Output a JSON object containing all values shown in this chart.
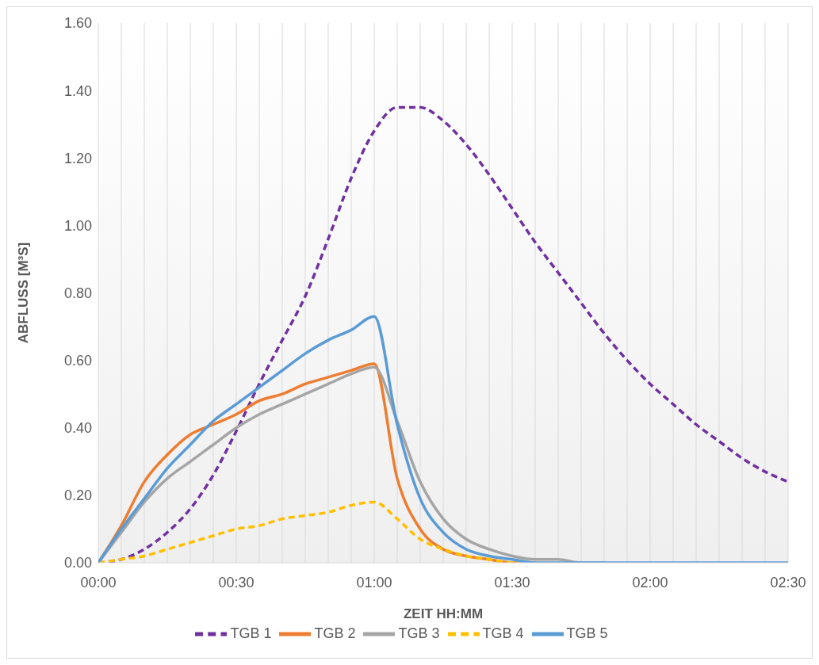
{
  "chart_data": {
    "type": "line",
    "xlabel": "ZEIT HH:MM",
    "ylabel": "ABFLUSS [M³S]",
    "x": [
      0,
      5,
      10,
      15,
      20,
      25,
      30,
      35,
      40,
      45,
      50,
      55,
      60,
      65,
      70,
      75,
      80,
      85,
      90,
      95,
      100,
      105,
      110,
      115,
      120,
      125,
      130,
      135,
      140,
      145,
      150
    ],
    "xlim": [
      0,
      150
    ],
    "xticks": [
      {
        "value": 0,
        "label": "00:00"
      },
      {
        "value": 5,
        "label": null
      },
      {
        "value": 10,
        "label": null
      },
      {
        "value": 15,
        "label": null
      },
      {
        "value": 20,
        "label": null
      },
      {
        "value": 25,
        "label": null
      },
      {
        "value": 30,
        "label": "00:30"
      },
      {
        "value": 35,
        "label": null
      },
      {
        "value": 40,
        "label": null
      },
      {
        "value": 45,
        "label": null
      },
      {
        "value": 50,
        "label": null
      },
      {
        "value": 55,
        "label": null
      },
      {
        "value": 60,
        "label": "01:00"
      },
      {
        "value": 65,
        "label": null
      },
      {
        "value": 70,
        "label": null
      },
      {
        "value": 75,
        "label": null
      },
      {
        "value": 80,
        "label": null
      },
      {
        "value": 85,
        "label": null
      },
      {
        "value": 90,
        "label": "01:30"
      },
      {
        "value": 95,
        "label": null
      },
      {
        "value": 100,
        "label": null
      },
      {
        "value": 105,
        "label": null
      },
      {
        "value": 110,
        "label": null
      },
      {
        "value": 115,
        "label": null
      },
      {
        "value": 120,
        "label": "02:00"
      },
      {
        "value": 125,
        "label": null
      },
      {
        "value": 130,
        "label": null
      },
      {
        "value": 135,
        "label": null
      },
      {
        "value": 140,
        "label": null
      },
      {
        "value": 145,
        "label": null
      },
      {
        "value": 150,
        "label": "02:30"
      }
    ],
    "ylim": [
      0,
      1.6
    ],
    "yticks": [
      {
        "value": 0,
        "label": "0.00"
      },
      {
        "value": 0.2,
        "label": "0.20"
      },
      {
        "value": 0.4,
        "label": "0.40"
      },
      {
        "value": 0.6,
        "label": "0.60"
      },
      {
        "value": 0.8,
        "label": "0.80"
      },
      {
        "value": 1,
        "label": "1.00"
      },
      {
        "value": 1.2,
        "label": "1.20"
      },
      {
        "value": 1.4,
        "label": "1.40"
      },
      {
        "value": 1.6,
        "label": "1.60"
      }
    ],
    "grid": "x",
    "legend": "bottom",
    "marker": "none",
    "series": [
      {
        "name": "TGB 1",
        "color": "#7030a0",
        "line_style": "dashed",
        "values": [
          0,
          0.01,
          0.04,
          0.09,
          0.16,
          0.26,
          0.39,
          0.53,
          0.66,
          0.79,
          0.96,
          1.14,
          1.28,
          1.35,
          1.35,
          1.31,
          1.24,
          1.15,
          1.05,
          0.95,
          0.86,
          0.77,
          0.68,
          0.6,
          0.53,
          0.47,
          0.41,
          0.36,
          0.31,
          0.27,
          0.24
        ]
      },
      {
        "name": "TGB 2",
        "color": "#ed7d31",
        "line_style": "solid",
        "values": [
          0,
          0.11,
          0.24,
          0.32,
          0.38,
          0.41,
          0.44,
          0.48,
          0.5,
          0.53,
          0.55,
          0.57,
          0.59,
          0.25,
          0.1,
          0.04,
          0.02,
          0.01,
          0,
          0,
          null,
          null,
          null,
          null,
          null,
          null,
          null,
          null,
          null,
          null,
          null
        ]
      },
      {
        "name": "TGB 3",
        "color": "#a5a5a5",
        "line_style": "solid",
        "values": [
          0,
          0.09,
          0.18,
          0.25,
          0.3,
          0.35,
          0.4,
          0.44,
          0.47,
          0.5,
          0.53,
          0.56,
          0.58,
          0.42,
          0.24,
          0.13,
          0.07,
          0.04,
          0.02,
          0.01,
          0.01,
          0,
          0,
          null,
          null,
          null,
          null,
          null,
          null,
          null,
          null
        ]
      },
      {
        "name": "TGB 4",
        "color": "#ffc000",
        "line_style": "dashed",
        "values": [
          0,
          0.01,
          0.02,
          0.04,
          0.06,
          0.08,
          0.1,
          0.11,
          0.13,
          0.14,
          0.15,
          0.17,
          0.18,
          0.13,
          0.07,
          0.04,
          0.02,
          0.01,
          0,
          0,
          null,
          null,
          null,
          null,
          null,
          null,
          null,
          null,
          null,
          null,
          null
        ]
      },
      {
        "name": "TGB 5",
        "color": "#5b9bd5",
        "line_style": "solid",
        "values": [
          0,
          0.1,
          0.19,
          0.28,
          0.35,
          0.42,
          0.47,
          0.52,
          0.57,
          0.62,
          0.66,
          0.69,
          0.73,
          0.41,
          0.19,
          0.09,
          0.04,
          0.02,
          0.01,
          0,
          0,
          0,
          0,
          0,
          0,
          0,
          0,
          0,
          0,
          0,
          0
        ]
      }
    ]
  }
}
